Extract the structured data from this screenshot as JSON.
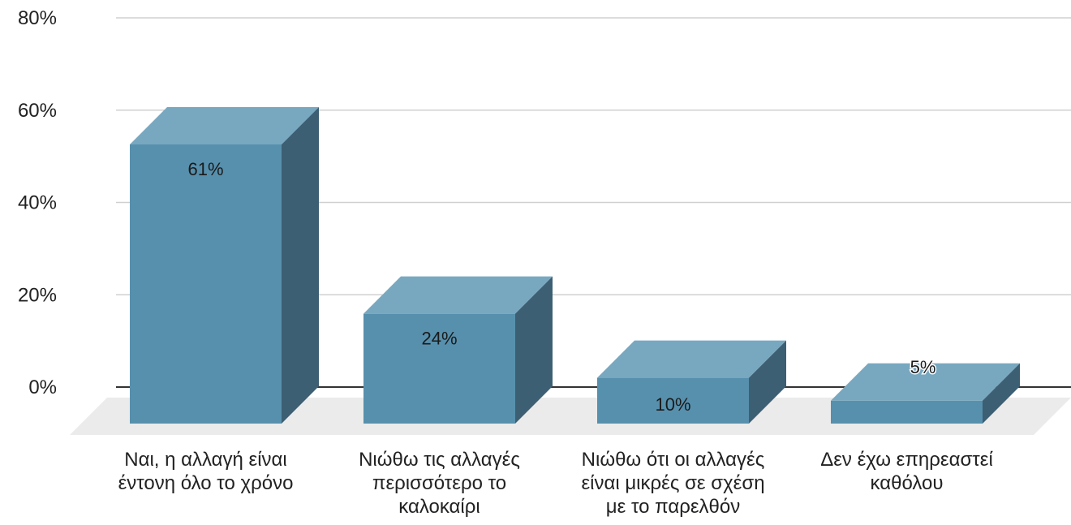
{
  "chart_data": {
    "type": "bar",
    "style": "3d",
    "categories": [
      "Ναι, η αλλαγή είναι\nέντονη όλο το χρόνο",
      "Νιώθω τις αλλαγές\nπερισσότερο το\nκαλοκαίρι",
      "Νιώθω ότι οι αλλαγές\nείναι μικρές σε σχέση\nμε το παρελθόν",
      "Δεν έχω επηρεαστεί\nκαθόλου"
    ],
    "values": [
      61,
      24,
      10,
      5
    ],
    "data_labels": [
      "61%",
      "24%",
      "10%",
      "5%"
    ],
    "yticks": [
      "0%",
      "20%",
      "40%",
      "60%",
      "80%"
    ],
    "ylim": [
      0,
      80
    ],
    "grid": true,
    "legend": "none",
    "title": "",
    "xlabel": "",
    "ylabel": "",
    "colors": {
      "front": "#5790ad",
      "top": "#78a8c0",
      "side": "#3d5f73",
      "floor": "#ebebeb",
      "grid": "#d0d0d0",
      "baseline": "#333333"
    }
  }
}
